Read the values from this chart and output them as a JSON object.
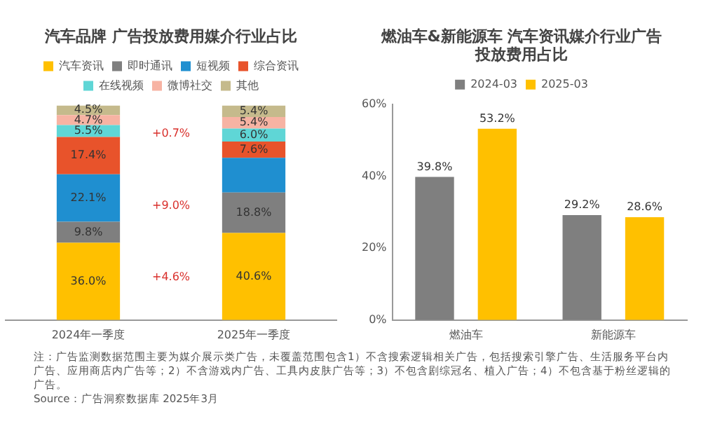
{
  "chart_data": [
    {
      "type": "bar",
      "title": "汽车品牌 广告投放费用媒介行业占比",
      "stacked": true,
      "legend": "top",
      "tick_labels": "x",
      "ylim": [
        0,
        100
      ],
      "categories": [
        "2024年一季度",
        "2025年一季度"
      ],
      "series": [
        {
          "name": "汽车资讯",
          "color": "#ffc000",
          "values": [
            36.0,
            40.6
          ],
          "value_labels": [
            "36.0%",
            "40.6%"
          ]
        },
        {
          "name": "即时通讯",
          "color": "#7f7f7f",
          "values": [
            9.8,
            18.8
          ],
          "value_labels": [
            "9.8%",
            "18.8%"
          ]
        },
        {
          "name": "短视频",
          "color": "#1f8fd0",
          "values": [
            22.1,
            16.2
          ],
          "value_labels": [
            "22.1%",
            null
          ]
        },
        {
          "name": "综合资讯",
          "color": "#e8532b",
          "values": [
            17.4,
            7.6
          ],
          "value_labels": [
            "17.4%",
            "7.6%"
          ]
        },
        {
          "name": "在线视频",
          "color": "#5fd6d6",
          "values": [
            5.5,
            6.0
          ],
          "value_labels": [
            "5.5%",
            "6.0%"
          ]
        },
        {
          "name": "微博社交",
          "color": "#f7b3a3",
          "values": [
            4.7,
            5.4
          ],
          "value_labels": [
            "4.7%",
            "5.4%"
          ]
        },
        {
          "name": "其他",
          "color": "#c5ba8c",
          "values": [
            4.5,
            5.4
          ],
          "value_labels": [
            "4.5%",
            "5.4%"
          ]
        }
      ],
      "annotations": [
        "+0.7%",
        "+9.0%",
        "+4.6%"
      ]
    },
    {
      "type": "bar",
      "title": "燃油车&新能源车 汽车资讯媒介行业广告投放费用占比",
      "legend": "top",
      "categories": [
        "燃油车",
        "新能源车"
      ],
      "ylim": [
        0,
        60
      ],
      "yticks": [
        {
          "value": 0,
          "label": "0%"
        },
        {
          "value": 20,
          "label": "20%"
        },
        {
          "value": 40,
          "label": "40%"
        },
        {
          "value": 60,
          "label": "60%"
        }
      ],
      "series": [
        {
          "name": "2024-03",
          "color": "#7f7f7f",
          "values": [
            39.8,
            29.2
          ],
          "value_labels": [
            "39.8%",
            "29.2%"
          ]
        },
        {
          "name": "2025-03",
          "color": "#ffc000",
          "values": [
            53.2,
            28.6
          ],
          "value_labels": [
            "53.2%",
            "28.6%"
          ]
        }
      ],
      "annotations": [
        "注：广告监测数据范围主要为媒介展示类广告，未覆盖范围包含1）不含搜索逻辑相关广告，包括搜索引擎广告、生活服务平台内广告、应用商店内广告等；2）不含游戏内广告、工具内皮肤广告等；3）不包含剧综冠名、植入广告；4）不包含基于粉丝逻辑的广告。",
        "Source：广告洞察数据库 2025年3月"
      ]
    }
  ]
}
